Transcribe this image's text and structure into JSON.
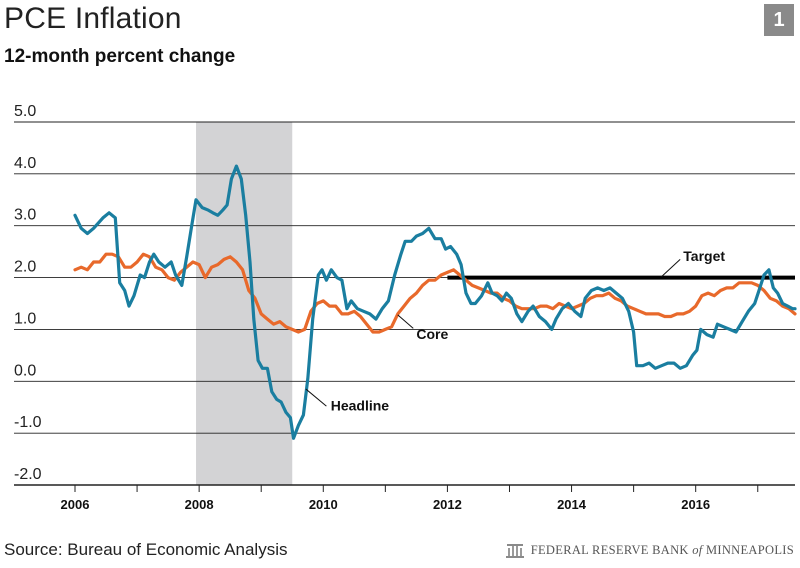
{
  "header": {
    "title": "PCE Inflation",
    "subtitle": "12-month percent change",
    "figure_number": "1"
  },
  "footer": {
    "source": "Source: Bureau of Economic Analysis",
    "publisher": "FEDERAL RESERVE BANK",
    "publisher_of": "of",
    "publisher_city": "MINNEAPOLIS"
  },
  "colors": {
    "headline": "#1a7ea0",
    "core": "#e8692b",
    "target": "#000000",
    "recession": "#d3d3d5",
    "grid": "#222222"
  },
  "chart_data": {
    "type": "line",
    "title": "PCE Inflation",
    "subtitle": "12-month percent change",
    "xlim": [
      2006.0,
      2017.6
    ],
    "ylim": [
      -2.0,
      5.0
    ],
    "yticks": [
      "5.0",
      "4.0",
      "3.0",
      "2.0",
      "1.0",
      "0.0",
      "-1.0",
      "-2.0"
    ],
    "ytick_values": [
      5,
      4,
      3,
      2,
      1,
      0,
      -1,
      -2
    ],
    "xtick_labels": [
      "2006",
      "2008",
      "2010",
      "2012",
      "2014",
      "2016"
    ],
    "xtick_values": [
      2006,
      2008,
      2010,
      2012,
      2014,
      2016
    ],
    "grid": "horizontal",
    "shaded_periods": [
      {
        "label": "recession",
        "start": 2007.95,
        "end": 2009.5
      }
    ],
    "target": {
      "name": "Target",
      "value": 2.0,
      "start": 2012.0,
      "end": 2017.6
    },
    "annotations": [
      {
        "text": "Target",
        "x": 2015.8,
        "y": 2.0
      },
      {
        "text": "Core",
        "x": 2011.5,
        "y": 1.1
      },
      {
        "text": "Headline",
        "x": 2009.7,
        "y": -0.3
      }
    ],
    "series": [
      {
        "name": "Headline",
        "points": [
          [
            2006.0,
            3.2
          ],
          [
            2006.1,
            2.95
          ],
          [
            2006.2,
            2.85
          ],
          [
            2006.3,
            2.95
          ],
          [
            2006.45,
            3.15
          ],
          [
            2006.55,
            3.25
          ],
          [
            2006.65,
            3.15
          ],
          [
            2006.72,
            1.9
          ],
          [
            2006.8,
            1.75
          ],
          [
            2006.87,
            1.45
          ],
          [
            2006.95,
            1.65
          ],
          [
            2007.05,
            2.05
          ],
          [
            2007.12,
            2.0
          ],
          [
            2007.2,
            2.3
          ],
          [
            2007.27,
            2.45
          ],
          [
            2007.35,
            2.3
          ],
          [
            2007.45,
            2.2
          ],
          [
            2007.55,
            2.3
          ],
          [
            2007.62,
            2.05
          ],
          [
            2007.72,
            1.85
          ],
          [
            2007.8,
            2.4
          ],
          [
            2007.88,
            3.0
          ],
          [
            2007.95,
            3.5
          ],
          [
            2008.05,
            3.35
          ],
          [
            2008.15,
            3.3
          ],
          [
            2008.22,
            3.25
          ],
          [
            2008.3,
            3.2
          ],
          [
            2008.38,
            3.3
          ],
          [
            2008.45,
            3.4
          ],
          [
            2008.52,
            3.9
          ],
          [
            2008.6,
            4.15
          ],
          [
            2008.68,
            3.9
          ],
          [
            2008.75,
            3.2
          ],
          [
            2008.82,
            2.3
          ],
          [
            2008.88,
            1.2
          ],
          [
            2008.95,
            0.4
          ],
          [
            2009.02,
            0.25
          ],
          [
            2009.1,
            0.25
          ],
          [
            2009.17,
            -0.2
          ],
          [
            2009.25,
            -0.35
          ],
          [
            2009.32,
            -0.4
          ],
          [
            2009.4,
            -0.6
          ],
          [
            2009.47,
            -0.7
          ],
          [
            2009.52,
            -1.1
          ],
          [
            2009.6,
            -0.85
          ],
          [
            2009.68,
            -0.65
          ],
          [
            2009.75,
            0.05
          ],
          [
            2009.83,
            1.2
          ],
          [
            2009.92,
            2.05
          ],
          [
            2009.98,
            2.15
          ],
          [
            2010.05,
            1.95
          ],
          [
            2010.13,
            2.15
          ],
          [
            2010.22,
            2.0
          ],
          [
            2010.3,
            1.95
          ],
          [
            2010.38,
            1.4
          ],
          [
            2010.45,
            1.55
          ],
          [
            2010.55,
            1.4
          ],
          [
            2010.65,
            1.35
          ],
          [
            2010.75,
            1.3
          ],
          [
            2010.85,
            1.2
          ],
          [
            2010.95,
            1.4
          ],
          [
            2011.05,
            1.55
          ],
          [
            2011.15,
            2.05
          ],
          [
            2011.25,
            2.45
          ],
          [
            2011.32,
            2.7
          ],
          [
            2011.42,
            2.7
          ],
          [
            2011.5,
            2.8
          ],
          [
            2011.6,
            2.85
          ],
          [
            2011.7,
            2.95
          ],
          [
            2011.8,
            2.75
          ],
          [
            2011.9,
            2.75
          ],
          [
            2011.97,
            2.55
          ],
          [
            2012.05,
            2.6
          ],
          [
            2012.15,
            2.45
          ],
          [
            2012.22,
            2.25
          ],
          [
            2012.3,
            1.7
          ],
          [
            2012.38,
            1.5
          ],
          [
            2012.45,
            1.5
          ],
          [
            2012.55,
            1.65
          ],
          [
            2012.65,
            1.9
          ],
          [
            2012.72,
            1.7
          ],
          [
            2012.8,
            1.65
          ],
          [
            2012.88,
            1.55
          ],
          [
            2012.95,
            1.7
          ],
          [
            2013.03,
            1.6
          ],
          [
            2013.12,
            1.3
          ],
          [
            2013.2,
            1.15
          ],
          [
            2013.3,
            1.35
          ],
          [
            2013.38,
            1.45
          ],
          [
            2013.48,
            1.25
          ],
          [
            2013.58,
            1.15
          ],
          [
            2013.68,
            1.0
          ],
          [
            2013.75,
            1.2
          ],
          [
            2013.85,
            1.4
          ],
          [
            2013.95,
            1.5
          ],
          [
            2014.05,
            1.35
          ],
          [
            2014.15,
            1.25
          ],
          [
            2014.22,
            1.6
          ],
          [
            2014.32,
            1.75
          ],
          [
            2014.42,
            1.8
          ],
          [
            2014.52,
            1.75
          ],
          [
            2014.62,
            1.8
          ],
          [
            2014.72,
            1.7
          ],
          [
            2014.82,
            1.6
          ],
          [
            2014.92,
            1.35
          ],
          [
            2015.0,
            0.95
          ],
          [
            2015.05,
            0.3
          ],
          [
            2015.15,
            0.3
          ],
          [
            2015.25,
            0.35
          ],
          [
            2015.35,
            0.25
          ],
          [
            2015.45,
            0.3
          ],
          [
            2015.55,
            0.35
          ],
          [
            2015.65,
            0.35
          ],
          [
            2015.75,
            0.25
          ],
          [
            2015.85,
            0.3
          ],
          [
            2015.95,
            0.5
          ],
          [
            2016.02,
            0.6
          ],
          [
            2016.08,
            1.0
          ],
          [
            2016.18,
            0.9
          ],
          [
            2016.28,
            0.85
          ],
          [
            2016.35,
            1.1
          ],
          [
            2016.45,
            1.05
          ],
          [
            2016.55,
            1.0
          ],
          [
            2016.65,
            0.95
          ],
          [
            2016.75,
            1.15
          ],
          [
            2016.85,
            1.35
          ],
          [
            2016.95,
            1.5
          ],
          [
            2017.02,
            1.75
          ],
          [
            2017.1,
            2.05
          ],
          [
            2017.18,
            2.15
          ],
          [
            2017.25,
            1.8
          ],
          [
            2017.32,
            1.7
          ],
          [
            2017.4,
            1.5
          ],
          [
            2017.48,
            1.45
          ],
          [
            2017.56,
            1.4
          ],
          [
            2017.6,
            1.4
          ]
        ]
      },
      {
        "name": "Core",
        "points": [
          [
            2006.0,
            2.15
          ],
          [
            2006.1,
            2.2
          ],
          [
            2006.2,
            2.15
          ],
          [
            2006.3,
            2.3
          ],
          [
            2006.4,
            2.3
          ],
          [
            2006.5,
            2.45
          ],
          [
            2006.6,
            2.45
          ],
          [
            2006.7,
            2.4
          ],
          [
            2006.8,
            2.2
          ],
          [
            2006.9,
            2.2
          ],
          [
            2007.0,
            2.3
          ],
          [
            2007.1,
            2.45
          ],
          [
            2007.2,
            2.4
          ],
          [
            2007.3,
            2.2
          ],
          [
            2007.4,
            2.15
          ],
          [
            2007.5,
            2.0
          ],
          [
            2007.6,
            1.95
          ],
          [
            2007.7,
            2.1
          ],
          [
            2007.8,
            2.2
          ],
          [
            2007.9,
            2.3
          ],
          [
            2008.0,
            2.25
          ],
          [
            2008.1,
            2.0
          ],
          [
            2008.2,
            2.2
          ],
          [
            2008.3,
            2.25
          ],
          [
            2008.4,
            2.35
          ],
          [
            2008.5,
            2.4
          ],
          [
            2008.6,
            2.3
          ],
          [
            2008.7,
            2.15
          ],
          [
            2008.8,
            1.75
          ],
          [
            2008.9,
            1.6
          ],
          [
            2009.0,
            1.3
          ],
          [
            2009.1,
            1.2
          ],
          [
            2009.2,
            1.1
          ],
          [
            2009.3,
            1.15
          ],
          [
            2009.4,
            1.05
          ],
          [
            2009.5,
            1.0
          ],
          [
            2009.6,
            0.95
          ],
          [
            2009.7,
            1.0
          ],
          [
            2009.8,
            1.35
          ],
          [
            2009.9,
            1.5
          ],
          [
            2010.0,
            1.55
          ],
          [
            2010.1,
            1.45
          ],
          [
            2010.2,
            1.45
          ],
          [
            2010.3,
            1.3
          ],
          [
            2010.4,
            1.3
          ],
          [
            2010.5,
            1.35
          ],
          [
            2010.6,
            1.25
          ],
          [
            2010.7,
            1.1
          ],
          [
            2010.8,
            0.95
          ],
          [
            2010.9,
            0.95
          ],
          [
            2011.0,
            1.0
          ],
          [
            2011.1,
            1.05
          ],
          [
            2011.2,
            1.3
          ],
          [
            2011.3,
            1.45
          ],
          [
            2011.4,
            1.6
          ],
          [
            2011.5,
            1.7
          ],
          [
            2011.6,
            1.85
          ],
          [
            2011.7,
            1.95
          ],
          [
            2011.8,
            1.95
          ],
          [
            2011.9,
            2.05
          ],
          [
            2012.0,
            2.1
          ],
          [
            2012.1,
            2.15
          ],
          [
            2012.2,
            2.05
          ],
          [
            2012.3,
            1.95
          ],
          [
            2012.4,
            1.85
          ],
          [
            2012.5,
            1.8
          ],
          [
            2012.6,
            1.75
          ],
          [
            2012.7,
            1.7
          ],
          [
            2012.8,
            1.7
          ],
          [
            2012.9,
            1.6
          ],
          [
            2013.0,
            1.55
          ],
          [
            2013.1,
            1.45
          ],
          [
            2013.2,
            1.4
          ],
          [
            2013.3,
            1.4
          ],
          [
            2013.4,
            1.4
          ],
          [
            2013.5,
            1.45
          ],
          [
            2013.6,
            1.45
          ],
          [
            2013.7,
            1.4
          ],
          [
            2013.8,
            1.5
          ],
          [
            2013.9,
            1.45
          ],
          [
            2014.0,
            1.4
          ],
          [
            2014.1,
            1.45
          ],
          [
            2014.2,
            1.5
          ],
          [
            2014.3,
            1.6
          ],
          [
            2014.4,
            1.65
          ],
          [
            2014.5,
            1.65
          ],
          [
            2014.6,
            1.7
          ],
          [
            2014.7,
            1.6
          ],
          [
            2014.8,
            1.55
          ],
          [
            2014.9,
            1.45
          ],
          [
            2015.0,
            1.4
          ],
          [
            2015.1,
            1.35
          ],
          [
            2015.2,
            1.3
          ],
          [
            2015.3,
            1.3
          ],
          [
            2015.4,
            1.3
          ],
          [
            2015.5,
            1.25
          ],
          [
            2015.6,
            1.25
          ],
          [
            2015.7,
            1.3
          ],
          [
            2015.8,
            1.3
          ],
          [
            2015.9,
            1.35
          ],
          [
            2016.0,
            1.45
          ],
          [
            2016.1,
            1.65
          ],
          [
            2016.2,
            1.7
          ],
          [
            2016.3,
            1.65
          ],
          [
            2016.4,
            1.75
          ],
          [
            2016.5,
            1.8
          ],
          [
            2016.6,
            1.8
          ],
          [
            2016.7,
            1.9
          ],
          [
            2016.8,
            1.9
          ],
          [
            2016.9,
            1.9
          ],
          [
            2017.0,
            1.85
          ],
          [
            2017.1,
            1.75
          ],
          [
            2017.2,
            1.6
          ],
          [
            2017.3,
            1.55
          ],
          [
            2017.4,
            1.45
          ],
          [
            2017.5,
            1.4
          ],
          [
            2017.6,
            1.3
          ]
        ]
      }
    ]
  }
}
